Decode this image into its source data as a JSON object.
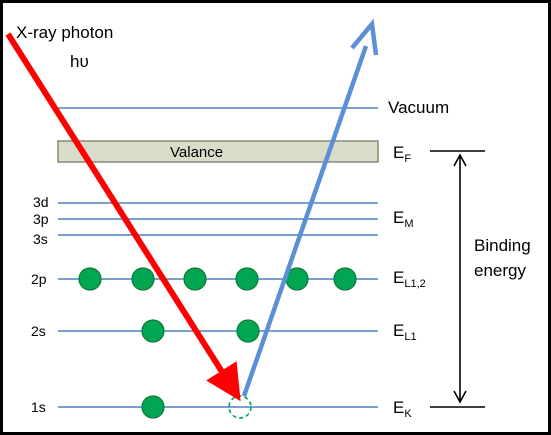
{
  "photon": {
    "line1": "X-ray photon",
    "line2": "hυ"
  },
  "valence_label": "Valance",
  "levels": {
    "vacuum": "Vacuum",
    "ef_main": "E",
    "ef_sub": "F",
    "em_main": "E",
    "em_sub": "M",
    "el12_main": "E",
    "el12_sub": "L1,2",
    "el1_main": "E",
    "el1_sub": "L1",
    "ek_main": "E",
    "ek_sub": "K"
  },
  "orbitals": [
    "3d",
    "3p",
    "3s",
    "2p",
    "2s",
    "1s"
  ],
  "binding": {
    "line1": "Binding",
    "line2": "energy"
  },
  "electrons": {
    "2p": 6,
    "2s": 2,
    "1s": 1,
    "1s_vacancy": 1
  },
  "colors": {
    "level_line": "#4f81bd",
    "photon_arrow": "#ff0000",
    "photoelectron_arrow": "#5b8fd6",
    "electron": "#00a650",
    "electron_edge": "#0b7a3a",
    "valence_band": "#d9dcc9",
    "frame": "#000000"
  }
}
